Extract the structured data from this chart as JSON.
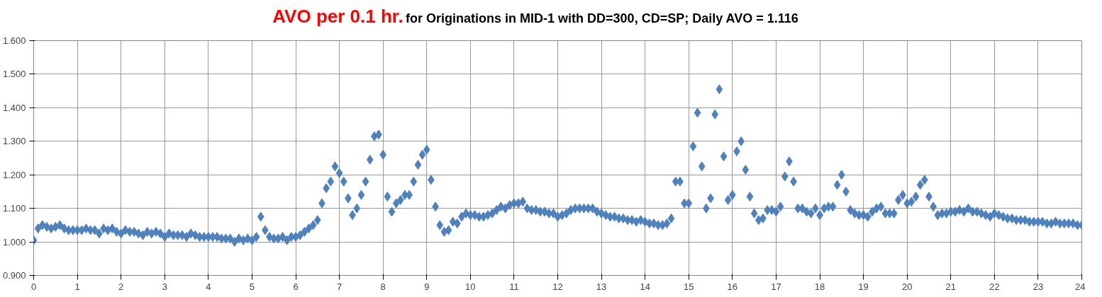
{
  "chart_data": {
    "type": "scatter",
    "title": "AVO per 0.1 hr.",
    "subtitle": "for Originations in MID-1 with DD=300, CD=SP; Daily AVO = 1.116",
    "x": [
      0,
      0.1,
      0.2,
      0.3,
      0.4,
      0.5,
      0.6,
      0.7,
      0.8,
      0.9,
      1,
      1.1,
      1.2,
      1.3,
      1.4,
      1.5,
      1.6,
      1.7,
      1.8,
      1.9,
      2,
      2.1,
      2.2,
      2.3,
      2.4,
      2.5,
      2.6,
      2.7,
      2.8,
      2.9,
      3,
      3.1,
      3.2,
      3.3,
      3.4,
      3.5,
      3.6,
      3.7,
      3.8,
      3.9,
      4,
      4.1,
      4.2,
      4.3,
      4.4,
      4.5,
      4.6,
      4.7,
      4.8,
      4.9,
      5,
      5.1,
      5.2,
      5.3,
      5.4,
      5.5,
      5.6,
      5.7,
      5.8,
      5.9,
      6,
      6.1,
      6.2,
      6.3,
      6.4,
      6.5,
      6.6,
      6.7,
      6.8,
      6.9,
      7,
      7.1,
      7.2,
      7.3,
      7.4,
      7.5,
      7.6,
      7.7,
      7.8,
      7.9,
      8,
      8.1,
      8.2,
      8.3,
      8.4,
      8.5,
      8.6,
      8.7,
      8.8,
      8.9,
      9,
      9.1,
      9.2,
      9.3,
      9.4,
      9.5,
      9.6,
      9.7,
      9.8,
      9.9,
      10,
      10.1,
      10.2,
      10.3,
      10.4,
      10.5,
      10.6,
      10.7,
      10.8,
      10.9,
      11,
      11.1,
      11.2,
      11.3,
      11.4,
      11.5,
      11.6,
      11.7,
      11.8,
      11.9,
      12,
      12.1,
      12.2,
      12.3,
      12.4,
      12.5,
      12.6,
      12.7,
      12.8,
      12.9,
      13,
      13.1,
      13.2,
      13.3,
      13.4,
      13.5,
      13.6,
      13.7,
      13.8,
      13.9,
      14,
      14.1,
      14.2,
      14.3,
      14.4,
      14.5,
      14.6,
      14.7,
      14.8,
      14.9,
      15,
      15.1,
      15.2,
      15.3,
      15.4,
      15.5,
      15.6,
      15.7,
      15.8,
      15.9,
      16,
      16.1,
      16.2,
      16.3,
      16.4,
      16.5,
      16.6,
      16.7,
      16.8,
      16.9,
      17,
      17.1,
      17.2,
      17.3,
      17.4,
      17.5,
      17.6,
      17.7,
      17.8,
      17.9,
      18,
      18.1,
      18.2,
      18.3,
      18.4,
      18.5,
      18.6,
      18.7,
      18.8,
      18.9,
      19,
      19.1,
      19.2,
      19.3,
      19.4,
      19.5,
      19.6,
      19.7,
      19.8,
      19.9,
      20,
      20.1,
      20.2,
      20.3,
      20.4,
      20.5,
      20.6,
      20.7,
      20.8,
      20.9,
      21,
      21.1,
      21.2,
      21.3,
      21.4,
      21.5,
      21.6,
      21.7,
      21.8,
      21.9,
      22,
      22.1,
      22.2,
      22.3,
      22.4,
      22.5,
      22.6,
      22.7,
      22.8,
      22.9,
      23,
      23.1,
      23.2,
      23.3,
      23.4,
      23.5,
      23.6,
      23.7,
      23.8,
      23.9,
      24
    ],
    "series": [
      {
        "color": "#4f81bd",
        "values": [
          1.005,
          1.04,
          1.05,
          1.045,
          1.04,
          1.045,
          1.05,
          1.04,
          1.035,
          1.035,
          1.035,
          1.035,
          1.04,
          1.035,
          1.035,
          1.025,
          1.04,
          1.035,
          1.04,
          1.03,
          1.025,
          1.035,
          1.03,
          1.03,
          1.025,
          1.02,
          1.03,
          1.025,
          1.03,
          1.025,
          1.015,
          1.025,
          1.02,
          1.02,
          1.02,
          1.015,
          1.025,
          1.02,
          1.015,
          1.015,
          1.015,
          1.015,
          1.015,
          1.01,
          1.01,
          1.01,
          1.0,
          1.01,
          1.005,
          1.01,
          1.005,
          1.015,
          1.075,
          1.035,
          1.015,
          1.01,
          1.01,
          1.015,
          1.005,
          1.015,
          1.015,
          1.02,
          1.03,
          1.04,
          1.05,
          1.065,
          1.115,
          1.16,
          1.18,
          1.225,
          1.205,
          1.18,
          1.13,
          1.08,
          1.1,
          1.14,
          1.18,
          1.245,
          1.315,
          1.32,
          1.26,
          1.135,
          1.09,
          1.115,
          1.125,
          1.14,
          1.14,
          1.18,
          1.23,
          1.26,
          1.275,
          1.185,
          1.105,
          1.05,
          1.03,
          1.035,
          1.06,
          1.055,
          1.075,
          1.085,
          1.08,
          1.08,
          1.075,
          1.075,
          1.08,
          1.085,
          1.095,
          1.105,
          1.1,
          1.11,
          1.115,
          1.115,
          1.12,
          1.1,
          1.095,
          1.095,
          1.09,
          1.09,
          1.085,
          1.085,
          1.075,
          1.08,
          1.085,
          1.095,
          1.1,
          1.1,
          1.1,
          1.1,
          1.1,
          1.09,
          1.085,
          1.08,
          1.075,
          1.075,
          1.07,
          1.07,
          1.065,
          1.065,
          1.06,
          1.065,
          1.06,
          1.055,
          1.055,
          1.05,
          1.05,
          1.055,
          1.07,
          1.18,
          1.18,
          1.115,
          1.115,
          1.285,
          1.385,
          1.225,
          1.1,
          1.13,
          1.38,
          1.455,
          1.255,
          1.125,
          1.14,
          1.27,
          1.3,
          1.215,
          1.135,
          1.085,
          1.065,
          1.07,
          1.095,
          1.095,
          1.09,
          1.105,
          1.195,
          1.24,
          1.18,
          1.1,
          1.1,
          1.09,
          1.085,
          1.1,
          1.08,
          1.1,
          1.105,
          1.105,
          1.17,
          1.2,
          1.15,
          1.095,
          1.085,
          1.08,
          1.08,
          1.075,
          1.09,
          1.1,
          1.105,
          1.085,
          1.085,
          1.085,
          1.125,
          1.14,
          1.115,
          1.12,
          1.135,
          1.17,
          1.185,
          1.135,
          1.105,
          1.08,
          1.085,
          1.085,
          1.09,
          1.09,
          1.095,
          1.09,
          1.1,
          1.09,
          1.09,
          1.085,
          1.08,
          1.075,
          1.085,
          1.08,
          1.075,
          1.07,
          1.07,
          1.065,
          1.065,
          1.065,
          1.06,
          1.06,
          1.06,
          1.06,
          1.055,
          1.055,
          1.06,
          1.055,
          1.055,
          1.055,
          1.055,
          1.05,
          1.05
        ]
      }
    ],
    "marker": "diamond",
    "grid": true,
    "xlim": [
      0,
      24
    ],
    "xticks": [
      0,
      1,
      2,
      3,
      4,
      5,
      6,
      7,
      8,
      9,
      10,
      11,
      12,
      13,
      14,
      15,
      16,
      17,
      18,
      19,
      20,
      21,
      22,
      23,
      24
    ],
    "ylim": [
      0.9,
      1.6
    ],
    "yticks": [
      {
        "value": 0.9,
        "label": "0.900"
      },
      {
        "value": 1.0,
        "label": "1.000"
      },
      {
        "value": 1.1,
        "label": "1.100"
      },
      {
        "value": 1.2,
        "label": "1.200"
      },
      {
        "value": 1.3,
        "label": "1.300"
      },
      {
        "value": 1.4,
        "label": "1.400"
      },
      {
        "value": 1.5,
        "label": "1.500"
      },
      {
        "value": 1.6,
        "label": "1.600"
      }
    ]
  }
}
